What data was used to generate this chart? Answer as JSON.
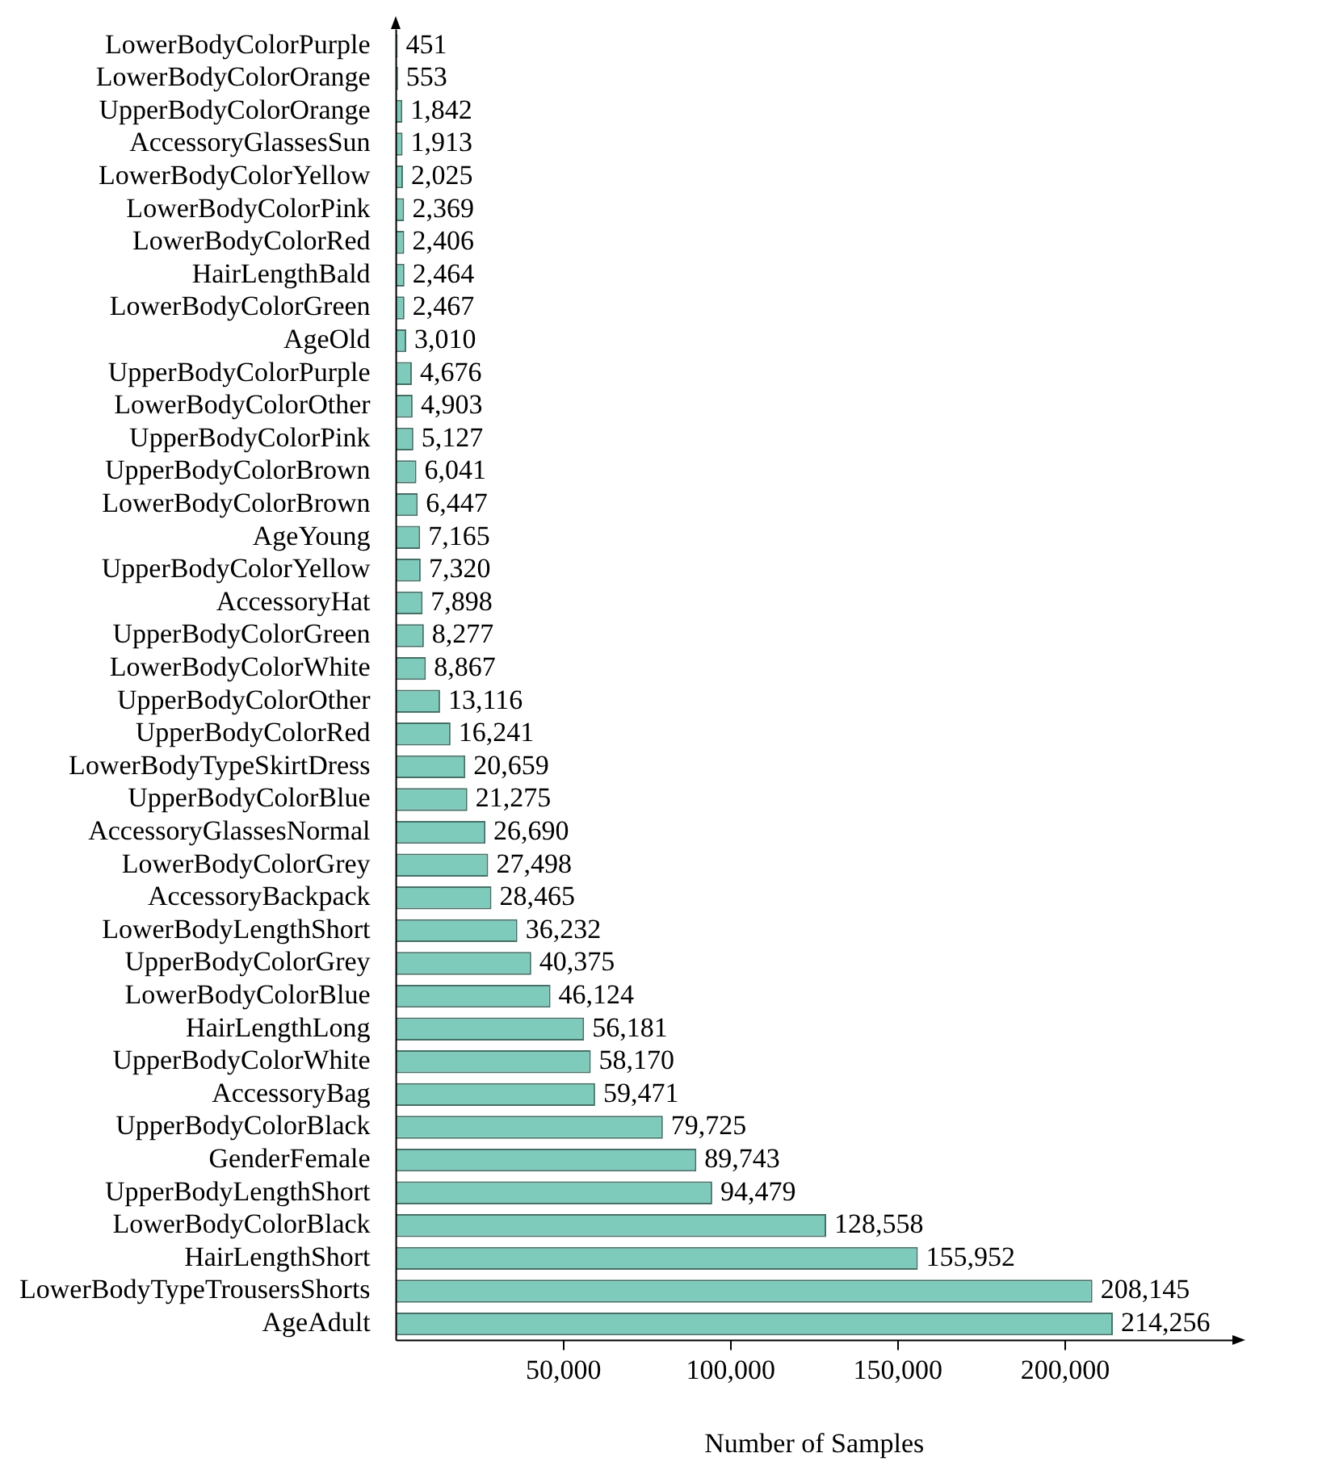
{
  "chart_data": {
    "type": "bar",
    "orientation": "horizontal",
    "xlabel": "Number of Samples",
    "categories": [
      "LowerBodyColorPurple",
      "LowerBodyColorOrange",
      "UpperBodyColorOrange",
      "AccessoryGlassesSun",
      "LowerBodyColorYellow",
      "LowerBodyColorPink",
      "LowerBodyColorRed",
      "HairLengthBald",
      "LowerBodyColorGreen",
      "AgeOld",
      "UpperBodyColorPurple",
      "LowerBodyColorOther",
      "UpperBodyColorPink",
      "UpperBodyColorBrown",
      "LowerBodyColorBrown",
      "AgeYoung",
      "UpperBodyColorYellow",
      "AccessoryHat",
      "UpperBodyColorGreen",
      "LowerBodyColorWhite",
      "UpperBodyColorOther",
      "UpperBodyColorRed",
      "LowerBodyTypeSkirtDress",
      "UpperBodyColorBlue",
      "AccessoryGlassesNormal",
      "LowerBodyColorGrey",
      "AccessoryBackpack",
      "LowerBodyLengthShort",
      "UpperBodyColorGrey",
      "LowerBodyColorBlue",
      "HairLengthLong",
      "UpperBodyColorWhite",
      "AccessoryBag",
      "UpperBodyColorBlack",
      "GenderFemale",
      "UpperBodyLengthShort",
      "LowerBodyColorBlack",
      "HairLengthShort",
      "LowerBodyTypeTrousersShorts",
      "AgeAdult"
    ],
    "values": [
      451,
      553,
      1842,
      1913,
      2025,
      2369,
      2406,
      2464,
      2467,
      3010,
      4676,
      4903,
      5127,
      6041,
      6447,
      7165,
      7320,
      7898,
      8277,
      8867,
      13116,
      16241,
      20659,
      21275,
      26690,
      27498,
      28465,
      36232,
      40375,
      46124,
      56181,
      58170,
      59471,
      79725,
      89743,
      94479,
      128558,
      155952,
      208145,
      214256
    ],
    "color": "#7fcbbb",
    "xlim": [
      0,
      250000
    ],
    "xticks": [
      {
        "value": 50000,
        "label": "50,000"
      },
      {
        "value": 100000,
        "label": "100,000"
      },
      {
        "value": 150000,
        "label": "150,000"
      },
      {
        "value": 200000,
        "label": "200,000"
      }
    ],
    "value_labels": [
      "451",
      "553",
      "1,842",
      "1,913",
      "2,025",
      "2,369",
      "2,406",
      "2,464",
      "2,467",
      "3,010",
      "4,676",
      "4,903",
      "5,127",
      "6,041",
      "6,447",
      "7,165",
      "7,320",
      "7,898",
      "8,277",
      "8,867",
      "13,116",
      "16,241",
      "20,659",
      "21,275",
      "26,690",
      "27,498",
      "28,465",
      "36,232",
      "40,375",
      "46,124",
      "56,181",
      "58,170",
      "59,471",
      "79,725",
      "89,743",
      "94,479",
      "128,558",
      "155,952",
      "208,145",
      "214,256"
    ],
    "grid": false,
    "legend": false
  }
}
